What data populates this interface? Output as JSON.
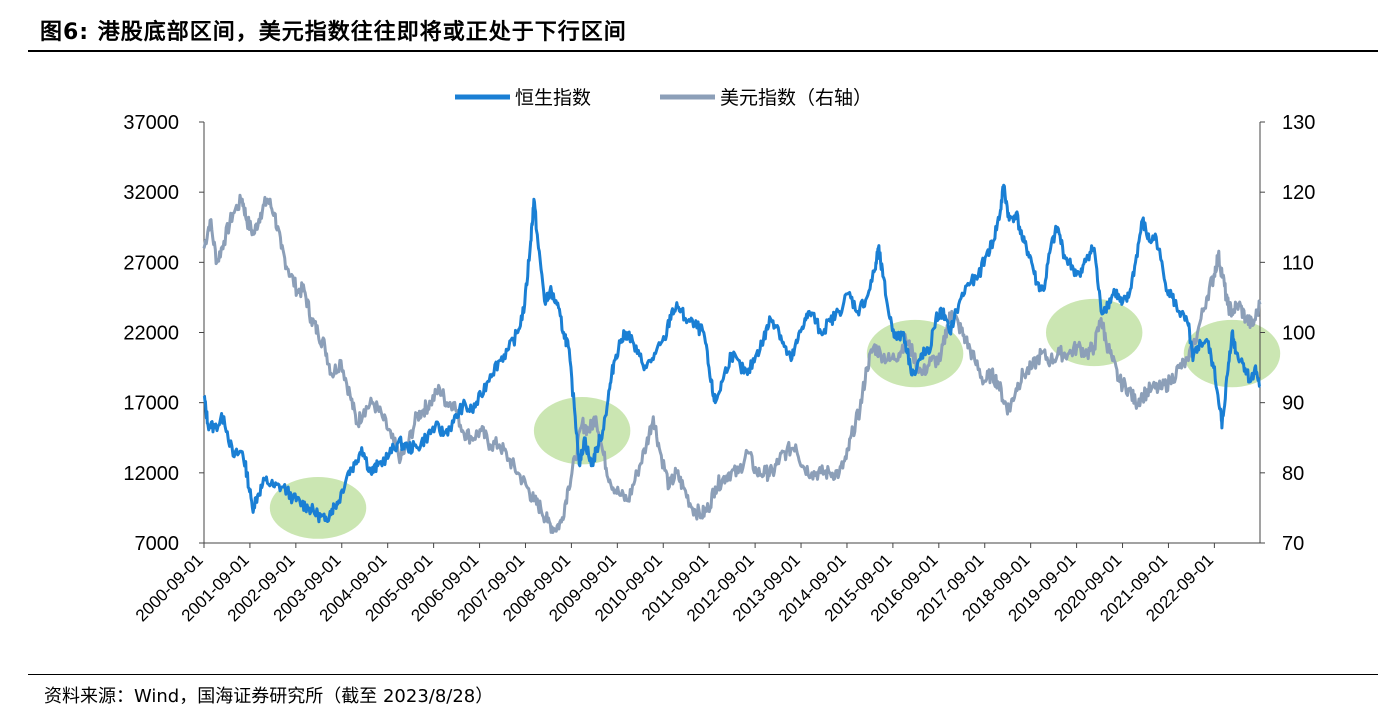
{
  "title": "图6:  港股底部区间，美元指数往往即将或正处于下行区间",
  "source": "资料来源：Wind，国海证券研究所（截至 2023/8/28）",
  "colors": {
    "hsi": "#1a7fd4",
    "dxy": "#8c9fb8",
    "highlight": "#a9d67e"
  },
  "chart_data": {
    "type": "line",
    "title": "港股底部区间，美元指数往往即将或正处于下行区间",
    "x_start": 2000.667,
    "x_end": 2023.66,
    "categories": [
      "2000-09-01",
      "2001-09-01",
      "2002-09-01",
      "2003-09-01",
      "2004-09-01",
      "2005-09-01",
      "2006-09-01",
      "2007-09-01",
      "2008-09-01",
      "2009-09-01",
      "2010-09-01",
      "2011-09-01",
      "2012-09-01",
      "2013-09-01",
      "2014-09-01",
      "2015-09-01",
      "2016-09-01",
      "2017-09-01",
      "2018-09-01",
      "2019-09-01",
      "2020-09-01",
      "2021-09-01",
      "2022-09-01"
    ],
    "y_left": {
      "min": 7000,
      "max": 37000,
      "ticks": [
        "37000",
        "32000",
        "27000",
        "22000",
        "17000",
        "12000",
        "7000"
      ]
    },
    "y_right": {
      "min": 70,
      "max": 130,
      "ticks": [
        "130",
        "120",
        "110",
        "100",
        "90",
        "80",
        "70"
      ]
    },
    "legend": [
      "恒生指数",
      "美元指数（右轴）"
    ],
    "series": [
      {
        "name": "恒生指数",
        "axis": "left",
        "points": [
          [
            2000.667,
            17500
          ],
          [
            2000.75,
            15500
          ],
          [
            2000.9,
            15200
          ],
          [
            2001.1,
            16000
          ],
          [
            2001.3,
            13200
          ],
          [
            2001.5,
            13500
          ],
          [
            2001.6,
            12000
          ],
          [
            2001.72,
            9500
          ],
          [
            2001.85,
            10500
          ],
          [
            2002.0,
            11500
          ],
          [
            2002.2,
            11000
          ],
          [
            2002.4,
            11000
          ],
          [
            2002.6,
            10200
          ],
          [
            2002.8,
            9800
          ],
          [
            2002.95,
            9500
          ],
          [
            2003.15,
            9000
          ],
          [
            2003.3,
            8600
          ],
          [
            2003.45,
            9400
          ],
          [
            2003.6,
            10000
          ],
          [
            2003.8,
            12000
          ],
          [
            2003.95,
            12600
          ],
          [
            2004.1,
            13800
          ],
          [
            2004.3,
            12000
          ],
          [
            2004.45,
            12500
          ],
          [
            2004.7,
            13300
          ],
          [
            2004.9,
            14200
          ],
          [
            2005.1,
            13800
          ],
          [
            2005.3,
            13800
          ],
          [
            2005.5,
            14500
          ],
          [
            2005.7,
            15300
          ],
          [
            2005.9,
            14800
          ],
          [
            2006.1,
            15600
          ],
          [
            2006.3,
            16800
          ],
          [
            2006.5,
            16400
          ],
          [
            2006.7,
            17500
          ],
          [
            2006.9,
            19000
          ],
          [
            2007.1,
            20000
          ],
          [
            2007.3,
            20800
          ],
          [
            2007.5,
            22000
          ],
          [
            2007.65,
            24000
          ],
          [
            2007.78,
            28500
          ],
          [
            2007.85,
            31500
          ],
          [
            2007.95,
            28000
          ],
          [
            2008.1,
            24000
          ],
          [
            2008.2,
            25000
          ],
          [
            2008.35,
            24000
          ],
          [
            2008.5,
            22000
          ],
          [
            2008.6,
            21000
          ],
          [
            2008.75,
            16000
          ],
          [
            2008.85,
            12500
          ],
          [
            2008.95,
            14500
          ],
          [
            2009.1,
            12500
          ],
          [
            2009.2,
            13500
          ],
          [
            2009.35,
            15000
          ],
          [
            2009.5,
            18000
          ],
          [
            2009.6,
            20000
          ],
          [
            2009.75,
            21500
          ],
          [
            2009.9,
            22000
          ],
          [
            2010.1,
            20500
          ],
          [
            2010.3,
            19500
          ],
          [
            2010.5,
            20500
          ],
          [
            2010.7,
            21500
          ],
          [
            2010.85,
            23500
          ],
          [
            2011.0,
            23800
          ],
          [
            2011.15,
            23000
          ],
          [
            2011.35,
            22500
          ],
          [
            2011.55,
            22000
          ],
          [
            2011.7,
            18500
          ],
          [
            2011.8,
            17000
          ],
          [
            2011.95,
            18500
          ],
          [
            2012.15,
            20500
          ],
          [
            2012.35,
            19500
          ],
          [
            2012.5,
            19000
          ],
          [
            2012.7,
            20500
          ],
          [
            2012.85,
            21500
          ],
          [
            2013.0,
            23000
          ],
          [
            2013.15,
            22500
          ],
          [
            2013.3,
            21000
          ],
          [
            2013.45,
            20000
          ],
          [
            2013.6,
            21500
          ],
          [
            2013.75,
            23000
          ],
          [
            2013.9,
            23400
          ],
          [
            2014.1,
            22000
          ],
          [
            2014.3,
            22800
          ],
          [
            2014.5,
            23500
          ],
          [
            2014.7,
            24800
          ],
          [
            2014.9,
            23500
          ],
          [
            2015.1,
            24500
          ],
          [
            2015.28,
            26500
          ],
          [
            2015.35,
            28000
          ],
          [
            2015.45,
            26000
          ],
          [
            2015.6,
            23000
          ],
          [
            2015.75,
            21500
          ],
          [
            2015.9,
            22000
          ],
          [
            2016.05,
            19500
          ],
          [
            2016.15,
            19000
          ],
          [
            2016.3,
            20500
          ],
          [
            2016.45,
            20500
          ],
          [
            2016.6,
            23000
          ],
          [
            2016.75,
            23500
          ],
          [
            2016.9,
            22000
          ],
          [
            2017.1,
            24000
          ],
          [
            2017.3,
            25500
          ],
          [
            2017.5,
            25800
          ],
          [
            2017.7,
            27500
          ],
          [
            2017.85,
            28500
          ],
          [
            2018.0,
            30500
          ],
          [
            2018.08,
            32500
          ],
          [
            2018.2,
            30000
          ],
          [
            2018.35,
            30500
          ],
          [
            2018.5,
            28500
          ],
          [
            2018.65,
            27500
          ],
          [
            2018.8,
            25500
          ],
          [
            2018.95,
            25000
          ],
          [
            2019.1,
            28000
          ],
          [
            2019.25,
            29500
          ],
          [
            2019.4,
            27500
          ],
          [
            2019.6,
            26500
          ],
          [
            2019.75,
            26000
          ],
          [
            2019.9,
            27500
          ],
          [
            2020.05,
            28000
          ],
          [
            2020.2,
            23500
          ],
          [
            2020.35,
            24000
          ],
          [
            2020.5,
            25000
          ],
          [
            2020.65,
            24000
          ],
          [
            2020.8,
            24500
          ],
          [
            2020.95,
            27000
          ],
          [
            2021.1,
            30000
          ],
          [
            2021.25,
            28500
          ],
          [
            2021.4,
            28800
          ],
          [
            2021.6,
            25500
          ],
          [
            2021.75,
            24500
          ],
          [
            2021.9,
            23500
          ],
          [
            2022.1,
            22500
          ],
          [
            2022.2,
            20000
          ],
          [
            2022.3,
            21000
          ],
          [
            2022.5,
            21500
          ],
          [
            2022.65,
            19500
          ],
          [
            2022.8,
            16500
          ],
          [
            2022.83,
            15200
          ],
          [
            2022.95,
            19000
          ],
          [
            2023.05,
            22000
          ],
          [
            2023.15,
            20500
          ],
          [
            2023.3,
            19800
          ],
          [
            2023.45,
            18500
          ],
          [
            2023.55,
            19500
          ],
          [
            2023.66,
            18200
          ]
        ]
      },
      {
        "name": "美元指数（右轴）",
        "axis": "right",
        "points": [
          [
            2000.667,
            112
          ],
          [
            2000.8,
            116
          ],
          [
            2000.95,
            110
          ],
          [
            2001.1,
            113
          ],
          [
            2001.3,
            117
          ],
          [
            2001.5,
            119
          ],
          [
            2001.6,
            116
          ],
          [
            2001.75,
            114
          ],
          [
            2001.9,
            117
          ],
          [
            2002.05,
            119
          ],
          [
            2002.2,
            117
          ],
          [
            2002.35,
            112
          ],
          [
            2002.5,
            109
          ],
          [
            2002.7,
            106
          ],
          [
            2002.85,
            106
          ],
          [
            2003.0,
            102
          ],
          [
            2003.15,
            100
          ],
          [
            2003.3,
            98
          ],
          [
            2003.45,
            94
          ],
          [
            2003.65,
            96
          ],
          [
            2003.85,
            91
          ],
          [
            2004.0,
            87
          ],
          [
            2004.15,
            89
          ],
          [
            2004.35,
            90
          ],
          [
            2004.55,
            88
          ],
          [
            2004.75,
            85
          ],
          [
            2004.95,
            82
          ],
          [
            2005.1,
            84
          ],
          [
            2005.3,
            88
          ],
          [
            2005.45,
            89
          ],
          [
            2005.6,
            90
          ],
          [
            2005.8,
            92
          ],
          [
            2005.95,
            90
          ],
          [
            2006.1,
            90
          ],
          [
            2006.3,
            86
          ],
          [
            2006.5,
            85
          ],
          [
            2006.7,
            86
          ],
          [
            2006.9,
            84
          ],
          [
            2007.1,
            84
          ],
          [
            2007.3,
            82
          ],
          [
            2007.5,
            80
          ],
          [
            2007.7,
            78
          ],
          [
            2007.85,
            76
          ],
          [
            2008.0,
            75
          ],
          [
            2008.15,
            73
          ],
          [
            2008.3,
            72
          ],
          [
            2008.45,
            73
          ],
          [
            2008.6,
            78
          ],
          [
            2008.75,
            82
          ],
          [
            2008.9,
            87
          ],
          [
            2009.05,
            86
          ],
          [
            2009.2,
            88
          ],
          [
            2009.35,
            83
          ],
          [
            2009.5,
            79
          ],
          [
            2009.7,
            77
          ],
          [
            2009.9,
            76
          ],
          [
            2010.1,
            80
          ],
          [
            2010.3,
            84
          ],
          [
            2010.45,
            88
          ],
          [
            2010.6,
            83
          ],
          [
            2010.8,
            78
          ],
          [
            2010.95,
            80
          ],
          [
            2011.1,
            78
          ],
          [
            2011.3,
            75
          ],
          [
            2011.5,
            74
          ],
          [
            2011.65,
            75
          ],
          [
            2011.8,
            78
          ],
          [
            2011.95,
            79
          ],
          [
            2012.1,
            80
          ],
          [
            2012.3,
            80
          ],
          [
            2012.5,
            83
          ],
          [
            2012.7,
            80
          ],
          [
            2012.9,
            80
          ],
          [
            2013.05,
            80
          ],
          [
            2013.2,
            82
          ],
          [
            2013.35,
            83
          ],
          [
            2013.55,
            84
          ],
          [
            2013.7,
            81
          ],
          [
            2013.9,
            80
          ],
          [
            2014.1,
            80
          ],
          [
            2014.3,
            80
          ],
          [
            2014.5,
            80
          ],
          [
            2014.65,
            82
          ],
          [
            2014.8,
            86
          ],
          [
            2014.95,
            89
          ],
          [
            2015.1,
            95
          ],
          [
            2015.25,
            98
          ],
          [
            2015.4,
            97
          ],
          [
            2015.6,
            96
          ],
          [
            2015.8,
            97
          ],
          [
            2015.95,
            99
          ],
          [
            2016.1,
            97
          ],
          [
            2016.3,
            94
          ],
          [
            2016.5,
            96
          ],
          [
            2016.7,
            96
          ],
          [
            2016.85,
            101
          ],
          [
            2016.95,
            103
          ],
          [
            2017.1,
            101
          ],
          [
            2017.25,
            99
          ],
          [
            2017.45,
            96
          ],
          [
            2017.65,
            93
          ],
          [
            2017.8,
            94
          ],
          [
            2017.95,
            93
          ],
          [
            2018.1,
            90
          ],
          [
            2018.2,
            89
          ],
          [
            2018.35,
            92
          ],
          [
            2018.5,
            94
          ],
          [
            2018.7,
            95
          ],
          [
            2018.9,
            97
          ],
          [
            2019.1,
            96
          ],
          [
            2019.3,
            97
          ],
          [
            2019.5,
            97
          ],
          [
            2019.7,
            98
          ],
          [
            2019.9,
            97
          ],
          [
            2020.05,
            98
          ],
          [
            2020.2,
            102
          ],
          [
            2020.3,
            99
          ],
          [
            2020.45,
            96
          ],
          [
            2020.6,
            93
          ],
          [
            2020.8,
            92
          ],
          [
            2020.95,
            90
          ],
          [
            2021.1,
            91
          ],
          [
            2021.3,
            92
          ],
          [
            2021.5,
            92
          ],
          [
            2021.7,
            93
          ],
          [
            2021.9,
            95
          ],
          [
            2022.1,
            96
          ],
          [
            2022.3,
            100
          ],
          [
            2022.5,
            105
          ],
          [
            2022.65,
            108
          ],
          [
            2022.75,
            111
          ],
          [
            2022.85,
            108
          ],
          [
            2022.95,
            104
          ],
          [
            2023.05,
            103
          ],
          [
            2023.2,
            104
          ],
          [
            2023.35,
            102
          ],
          [
            2023.5,
            101
          ],
          [
            2023.66,
            104
          ]
        ]
      }
    ],
    "highlights": [
      {
        "x": 2003.15,
        "y_left": 9500,
        "rx_years": 1.05,
        "ry_left": 2200
      },
      {
        "x": 2008.9,
        "y_left": 15000,
        "rx_years": 1.05,
        "ry_left": 2400
      },
      {
        "x": 2016.15,
        "y_left": 20500,
        "rx_years": 1.05,
        "ry_left": 2400
      },
      {
        "x": 2020.05,
        "y_left": 22000,
        "rx_years": 1.05,
        "ry_left": 2400
      },
      {
        "x": 2023.05,
        "y_left": 20500,
        "rx_years": 1.05,
        "ry_left": 2400
      }
    ]
  }
}
